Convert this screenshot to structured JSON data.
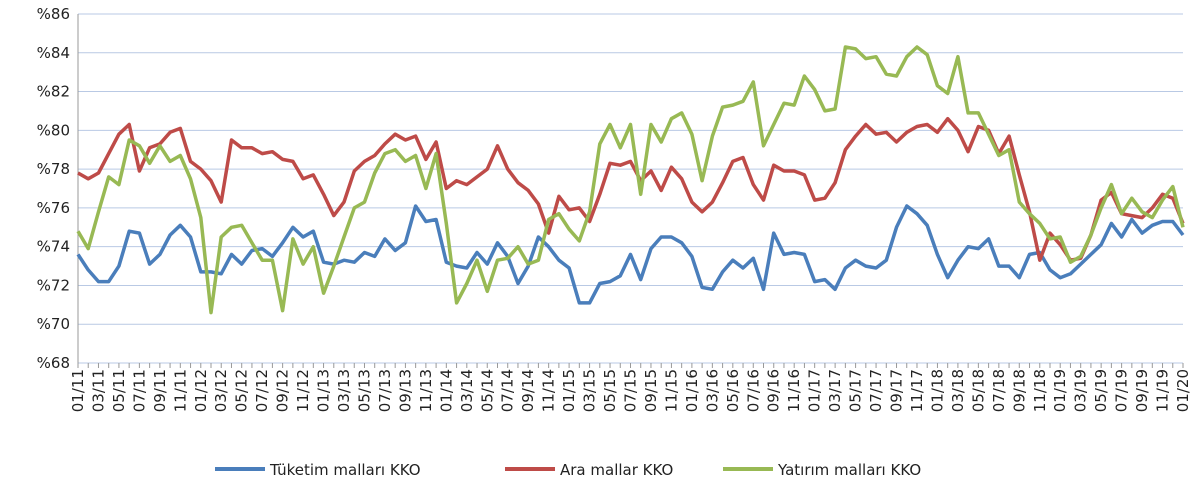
{
  "chart_data": {
    "type": "line",
    "categories": [
      "01/11",
      null,
      "03/11",
      null,
      "05/11",
      null,
      "07/11",
      null,
      "09/11",
      null,
      "11/11",
      null,
      "01/12",
      null,
      "03/12",
      null,
      "05/12",
      null,
      "07/12",
      null,
      "09/12",
      null,
      "11/12",
      null,
      "01/13",
      null,
      "03/13",
      null,
      "05/13",
      null,
      "07/13",
      null,
      "09/13",
      null,
      "11/13",
      null,
      "01/14",
      null,
      "03/14",
      null,
      "05/14",
      null,
      "07/14",
      null,
      "09/14",
      null,
      "11/14",
      null,
      "01/15",
      null,
      "03/15",
      null,
      "05/15",
      null,
      "07/15",
      null,
      "09/15",
      null,
      "11/15",
      null,
      "01/16",
      null,
      "03/16",
      null,
      "05/16",
      null,
      "07/16",
      null,
      "09/16",
      null,
      "11/16",
      null,
      "01/17",
      null,
      "03/17",
      null,
      "05/17",
      null,
      "07/17",
      null,
      "09/17",
      null,
      "11/17",
      null,
      "01/18",
      null,
      "03/18",
      null,
      "05/18",
      null,
      "07/18",
      null,
      "09/18",
      null,
      "11/18",
      null,
      "01/19",
      null,
      "03/19",
      null,
      "05/19",
      null,
      "07/19",
      null,
      "09/19",
      null,
      "11/19",
      null,
      "01/20"
    ],
    "series": [
      {
        "name": "Tüketim malları KKO",
        "color": "#4a7ebb",
        "values": [
          73.6,
          72.8,
          72.2,
          72.2,
          73.0,
          74.8,
          74.7,
          73.1,
          73.6,
          74.6,
          75.1,
          74.5,
          72.7,
          72.7,
          72.6,
          73.6,
          73.1,
          73.8,
          73.9,
          73.5,
          74.2,
          75.0,
          74.5,
          74.8,
          73.2,
          73.1,
          73.3,
          73.2,
          73.7,
          73.5,
          74.4,
          73.8,
          74.2,
          76.1,
          75.3,
          75.4,
          73.2,
          73.0,
          72.9,
          73.7,
          73.1,
          74.2,
          73.5,
          72.1,
          73.0,
          74.5,
          74.0,
          73.3,
          72.9,
          71.1,
          71.1,
          72.1,
          72.2,
          72.5,
          73.6,
          72.3,
          73.9,
          74.5,
          74.5,
          74.2,
          73.5,
          71.9,
          71.8,
          72.7,
          73.3,
          72.9,
          73.4,
          71.8,
          74.7,
          73.6,
          73.7,
          73.6,
          72.2,
          72.3,
          71.8,
          72.9,
          73.3,
          73.0,
          72.9,
          73.3,
          75.0,
          76.1,
          75.7,
          75.1,
          73.6,
          72.4,
          73.3,
          74.0,
          73.9,
          74.4,
          73.0,
          73.0,
          72.4,
          73.6,
          73.7,
          72.8,
          72.4,
          72.6,
          73.1,
          73.6,
          74.1,
          75.2,
          74.5,
          75.4,
          74.7,
          75.1,
          75.3,
          75.3,
          74.6
        ]
      },
      {
        "name": "Ara mallar KKO",
        "color": "#be4b48",
        "values": [
          77.8,
          77.5,
          77.8,
          78.8,
          79.8,
          80.3,
          77.9,
          79.1,
          79.3,
          79.9,
          80.1,
          78.4,
          78.0,
          77.4,
          76.3,
          79.5,
          79.1,
          79.1,
          78.8,
          78.9,
          78.5,
          78.4,
          77.5,
          77.7,
          76.7,
          75.6,
          76.3,
          77.9,
          78.4,
          78.7,
          79.3,
          79.8,
          79.5,
          79.7,
          78.5,
          79.4,
          77.0,
          77.4,
          77.2,
          77.6,
          78.0,
          79.2,
          78.0,
          77.3,
          76.9,
          76.2,
          74.7,
          76.6,
          75.9,
          76.0,
          75.3,
          76.7,
          78.3,
          78.2,
          78.4,
          77.4,
          77.9,
          76.9,
          78.1,
          77.5,
          76.3,
          75.8,
          76.3,
          77.3,
          78.4,
          78.6,
          77.2,
          76.4,
          78.2,
          77.9,
          77.9,
          77.7,
          76.4,
          76.5,
          77.3,
          79.0,
          79.7,
          80.3,
          79.8,
          79.9,
          79.4,
          79.9,
          80.2,
          80.3,
          79.9,
          80.6,
          80.0,
          78.9,
          80.2,
          80.0,
          78.8,
          79.7,
          77.7,
          75.8,
          73.3,
          74.7,
          74.1,
          73.3,
          73.4,
          74.6,
          76.4,
          76.8,
          75.7,
          75.6,
          75.5,
          76.0,
          76.7,
          76.5,
          75.2
        ]
      },
      {
        "name": "Yatırım malları KKO",
        "color": "#98b954",
        "values": [
          74.8,
          73.9,
          75.8,
          77.6,
          77.2,
          79.5,
          79.2,
          78.3,
          79.2,
          78.4,
          78.7,
          77.5,
          75.5,
          70.6,
          74.5,
          75.0,
          75.1,
          74.2,
          73.3,
          73.3,
          70.7,
          74.4,
          73.1,
          74.0,
          71.6,
          73.0,
          74.5,
          76.0,
          76.3,
          77.8,
          78.8,
          79.0,
          78.4,
          78.7,
          77.0,
          78.8,
          75.2,
          71.1,
          72.1,
          73.3,
          71.7,
          73.3,
          73.4,
          74.0,
          73.1,
          73.3,
          75.4,
          75.7,
          74.9,
          74.3,
          75.8,
          79.3,
          80.3,
          79.1,
          80.3,
          76.7,
          80.3,
          79.4,
          80.6,
          80.9,
          79.8,
          77.4,
          79.7,
          81.2,
          81.3,
          81.5,
          82.5,
          79.2,
          80.3,
          81.4,
          81.3,
          82.8,
          82.1,
          81.0,
          81.1,
          84.3,
          84.2,
          83.7,
          83.8,
          82.9,
          82.8,
          83.8,
          84.3,
          83.9,
          82.3,
          81.9,
          83.8,
          80.9,
          80.9,
          79.8,
          78.7,
          79.0,
          76.3,
          75.7,
          75.2,
          74.4,
          74.5,
          73.2,
          73.5,
          74.6,
          76.0,
          77.2,
          75.7,
          76.5,
          75.8,
          75.5,
          76.4,
          77.1,
          75.0
        ]
      }
    ],
    "ylim": [
      68,
      86
    ],
    "yticks": [
      {
        "value": 68,
        "label": "%68"
      },
      {
        "value": 70,
        "label": "%70"
      },
      {
        "value": 72,
        "label": "%72"
      },
      {
        "value": 74,
        "label": "%74"
      },
      {
        "value": 76,
        "label": "%76"
      },
      {
        "value": 78,
        "label": "%78"
      },
      {
        "value": 80,
        "label": "%80"
      },
      {
        "value": 82,
        "label": "%82"
      },
      {
        "value": 84,
        "label": "%84"
      },
      {
        "value": 86,
        "label": "%86"
      }
    ],
    "grid": true,
    "legend": "bottom"
  }
}
